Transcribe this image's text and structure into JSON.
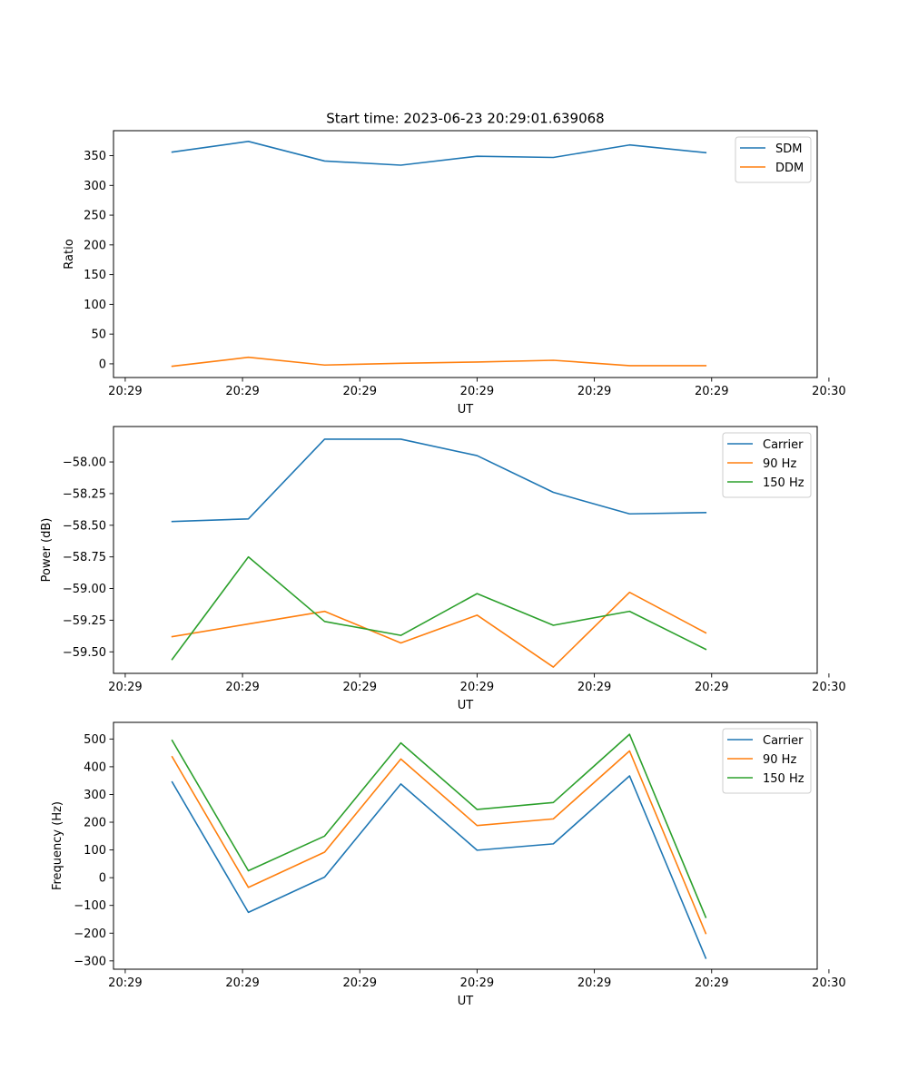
{
  "figure": {
    "title": "Start time: 2023-06-23 20:29:01.639068"
  },
  "chart_data": [
    {
      "type": "line",
      "title": "Start time: 2023-06-23 20:29:01.639068",
      "xlabel": "UT",
      "ylabel": "Ratio",
      "x": [
        1.0,
        1.65,
        2.3,
        2.95,
        3.6,
        4.25,
        4.9,
        5.55
      ],
      "xlim": [
        0.5,
        6.5
      ],
      "xticks": [
        0.6,
        1.6,
        2.6,
        3.6,
        4.6,
        5.6,
        6.6
      ],
      "xtick_labels": [
        "20:29",
        "20:29",
        "20:29",
        "20:29",
        "20:29",
        "20:29",
        "20:30"
      ],
      "ylim": [
        -23,
        392
      ],
      "yticks": [
        0,
        50,
        100,
        150,
        200,
        250,
        300,
        350
      ],
      "ytick_labels": [
        "0",
        "50",
        "100",
        "150",
        "200",
        "250",
        "300",
        "350"
      ],
      "grid": false,
      "legend": "top-right",
      "series": [
        {
          "name": "SDM",
          "color": "#1f77b4",
          "values": [
            356,
            374,
            341,
            334,
            349,
            347,
            368,
            355
          ]
        },
        {
          "name": "DDM",
          "color": "#ff7f0e",
          "values": [
            -4,
            11,
            -2,
            1,
            3,
            6,
            -3,
            -3
          ]
        }
      ]
    },
    {
      "type": "line",
      "title": "",
      "xlabel": "UT",
      "ylabel": "Power (dB)",
      "x": [
        1.0,
        1.65,
        2.3,
        2.95,
        3.6,
        4.25,
        4.9,
        5.55
      ],
      "xlim": [
        0.5,
        6.5
      ],
      "xticks": [
        0.6,
        1.6,
        2.6,
        3.6,
        4.6,
        5.6,
        6.6
      ],
      "xtick_labels": [
        "20:29",
        "20:29",
        "20:29",
        "20:29",
        "20:29",
        "20:29",
        "20:30"
      ],
      "ylim": [
        -59.67,
        -57.72
      ],
      "yticks": [
        -59.5,
        -59.25,
        -59.0,
        -58.75,
        -58.5,
        -58.25,
        -58.0
      ],
      "ytick_labels": [
        "−59.50",
        "−59.25",
        "−59.00",
        "−58.75",
        "−58.50",
        "−58.25",
        "−58.00"
      ],
      "grid": false,
      "legend": "top-right",
      "series": [
        {
          "name": "Carrier",
          "color": "#1f77b4",
          "values": [
            -58.47,
            -58.45,
            -57.82,
            -57.82,
            -57.95,
            -58.24,
            -58.41,
            -58.4
          ]
        },
        {
          "name": "90 Hz",
          "color": "#ff7f0e",
          "values": [
            -59.38,
            -59.28,
            -59.18,
            -59.43,
            -59.21,
            -59.62,
            -59.03,
            -59.35
          ]
        },
        {
          "name": "150 Hz",
          "color": "#2ca02c",
          "values": [
            -59.56,
            -58.75,
            -59.26,
            -59.37,
            -59.04,
            -59.29,
            -59.18,
            -59.48
          ]
        }
      ]
    },
    {
      "type": "line",
      "title": "",
      "xlabel": "UT",
      "ylabel": "Frequency (Hz)",
      "x": [
        1.0,
        1.65,
        2.3,
        2.95,
        3.6,
        4.25,
        4.9,
        5.55
      ],
      "xlim": [
        0.5,
        6.5
      ],
      "xticks": [
        0.6,
        1.6,
        2.6,
        3.6,
        4.6,
        5.6,
        6.6
      ],
      "xtick_labels": [
        "20:29",
        "20:29",
        "20:29",
        "20:29",
        "20:29",
        "20:29",
        "20:30"
      ],
      "ylim": [
        -330,
        560
      ],
      "yticks": [
        -300,
        -200,
        -100,
        0,
        100,
        200,
        300,
        400,
        500
      ],
      "ytick_labels": [
        "−300",
        "−200",
        "−100",
        "0",
        "100",
        "200",
        "300",
        "400",
        "500"
      ],
      "grid": false,
      "legend": "top-right",
      "series": [
        {
          "name": "Carrier",
          "color": "#1f77b4",
          "values": [
            345,
            -125,
            2,
            338,
            99,
            122,
            367,
            -290
          ]
        },
        {
          "name": "90 Hz",
          "color": "#ff7f0e",
          "values": [
            436,
            -35,
            92,
            428,
            188,
            212,
            457,
            -201
          ]
        },
        {
          "name": "150 Hz",
          "color": "#2ca02c",
          "values": [
            495,
            25,
            150,
            486,
            246,
            271,
            517,
            -143
          ]
        }
      ]
    }
  ]
}
